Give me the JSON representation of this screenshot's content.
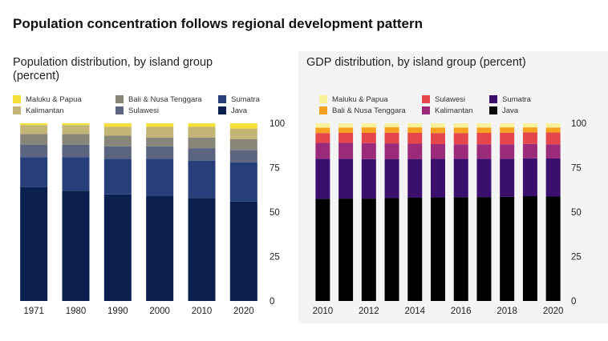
{
  "title": "Population concentration follows regional development pattern",
  "chart_data": [
    {
      "type": "bar",
      "stacked": true,
      "title": "Population distribution, by island group (percent)",
      "categories": [
        "1971",
        "1980",
        "1990",
        "2000",
        "2010",
        "2020"
      ],
      "ylim": [
        0,
        100
      ],
      "yticks": [
        0,
        25,
        50,
        75,
        100
      ],
      "grid": false,
      "legend_position": "top",
      "series": [
        {
          "name": "Java",
          "color": "#0b1f4f",
          "values": [
            64,
            62,
            60,
            59,
            58,
            56
          ]
        },
        {
          "name": "Sumatra",
          "color": "#263f7a",
          "values": [
            17,
            19,
            20,
            21,
            21,
            22
          ]
        },
        {
          "name": "Sulawesi",
          "color": "#5c6580",
          "values": [
            7,
            7,
            7,
            7,
            7,
            7
          ]
        },
        {
          "name": "Bali & Nusa Tenggara",
          "color": "#878679",
          "values": [
            6,
            6,
            6,
            5,
            6,
            6
          ]
        },
        {
          "name": "Kalimantan",
          "color": "#c2b576",
          "values": [
            5,
            5,
            5,
            6,
            6,
            6
          ]
        },
        {
          "name": "Maluku & Papua",
          "color": "#f4e03a",
          "values": [
            1,
            1,
            2,
            2,
            2,
            3
          ]
        }
      ]
    },
    {
      "type": "bar",
      "stacked": true,
      "title": "GDP distribution, by island group (percent)",
      "categories": [
        "2010",
        "2011",
        "2012",
        "2013",
        "2014",
        "2015",
        "2016",
        "2017",
        "2018",
        "2019",
        "2020"
      ],
      "xtick_labels": [
        "2010",
        "2012",
        "2014",
        "2016",
        "2018",
        "2020"
      ],
      "ylim": [
        0,
        100
      ],
      "yticks": [
        0,
        25,
        50,
        75,
        100
      ],
      "grid": false,
      "legend_position": "top",
      "series": [
        {
          "name": "Java",
          "color": "#000000",
          "values": [
            57.5,
            57.6,
            57.6,
            57.9,
            58.1,
            58.3,
            58.4,
            58.5,
            58.6,
            59.0,
            58.8
          ]
        },
        {
          "name": "Sumatra",
          "color": "#3a0f6e",
          "values": [
            22.5,
            22.4,
            22.2,
            22.0,
            21.8,
            21.7,
            21.6,
            21.5,
            21.4,
            21.3,
            21.4
          ]
        },
        {
          "name": "Kalimantan",
          "color": "#9c2a7a",
          "values": [
            9.0,
            9.0,
            9.0,
            8.8,
            8.6,
            8.3,
            8.2,
            8.2,
            8.2,
            8.1,
            7.9
          ]
        },
        {
          "name": "Sulawesi",
          "color": "#e4464b",
          "values": [
            5.5,
            5.6,
            5.8,
            6.0,
            6.1,
            6.2,
            6.3,
            6.4,
            6.5,
            6.5,
            6.7
          ]
        },
        {
          "name": "Bali & Nusa Tenggara",
          "color": "#f6a11f",
          "values": [
            3.0,
            3.0,
            3.1,
            3.1,
            3.1,
            3.1,
            3.1,
            3.0,
            3.0,
            2.8,
            2.8
          ]
        },
        {
          "name": "Maluku & Papua",
          "color": "#f7f29a",
          "values": [
            2.5,
            2.4,
            2.3,
            2.2,
            2.3,
            2.4,
            2.4,
            2.4,
            2.3,
            2.3,
            2.4
          ]
        }
      ]
    }
  ],
  "legends": [
    {
      "items": [
        {
          "label": "Maluku & Papua",
          "color": "#f4e03a"
        },
        {
          "label": "Kalimantan",
          "color": "#c2b576"
        },
        {
          "label": "Bali & Nusa Tenggara",
          "color": "#878679"
        },
        {
          "label": "Sulawesi",
          "color": "#5c6580"
        },
        {
          "label": "Sumatra",
          "color": "#263f7a"
        },
        {
          "label": "Java",
          "color": "#0b1f4f"
        }
      ]
    },
    {
      "items": [
        {
          "label": "Maluku & Papua",
          "color": "#f7f29a"
        },
        {
          "label": "Bali & Nusa Tenggara",
          "color": "#f6a11f"
        },
        {
          "label": "Sulawesi",
          "color": "#e4464b"
        },
        {
          "label": "Kalimantan",
          "color": "#9c2a7a"
        },
        {
          "label": "Sumatra",
          "color": "#3a0f6e"
        },
        {
          "label": "Java",
          "color": "#000000"
        }
      ]
    }
  ]
}
